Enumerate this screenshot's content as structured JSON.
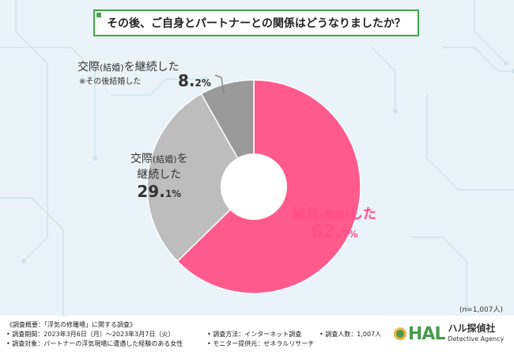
{
  "title": "その後、ご自身とパートナーとの関係はどうなりましたか？",
  "chart_data": {
    "type": "pie",
    "style": "donut",
    "title": "その後、ご自身とパートナーとの関係はどうなりましたか？",
    "slices": [
      {
        "label": "破局(離婚)した",
        "value": 62.7,
        "color": "#ff5a8e"
      },
      {
        "label": "交際(結婚)を継続した",
        "value": 29.1,
        "color": "#bdbdbd"
      },
      {
        "label": "交際(結婚)を継続した※その後結婚した",
        "value": 8.2,
        "color": "#9a9a9a"
      }
    ],
    "labels": {
      "breakup": {
        "line1": "破局",
        "paren": "(離婚)",
        "line1b": "した",
        "pct_int": "62.",
        "pct_dec": "7",
        "pct_sign": "%"
      },
      "continued": {
        "line1": "交際",
        "paren": "(結婚)",
        "line1b": "を",
        "line2": "継続した",
        "pct_int": "29.",
        "pct_dec": "1",
        "pct_sign": "%"
      },
      "married": {
        "line1": "交際",
        "paren": "(結婚)",
        "line1b": "を継続した",
        "line2": "※その後結婚した",
        "pct_int": "8.",
        "pct_dec": "2",
        "pct_sign": "%"
      }
    },
    "n_note": "(n=1,007人)"
  },
  "footer": {
    "summary": "《調査概要：「浮気の修羅場」に関する調査》",
    "period": "• 調査期間：2023年3月6日（月）～2023年3月7日（火）",
    "target": "• 調査対象：パートナーの浮気現場に遭遇した経験のある女性",
    "method": "• 調査方法：インターネット調査",
    "provider": "• モニター提供元：ゼネラルリサーチ",
    "count": "• 調査人数：1,007人"
  },
  "logo": {
    "mark": "HAL",
    "name": "ハル探偵社",
    "sub": "Detective Agency"
  }
}
